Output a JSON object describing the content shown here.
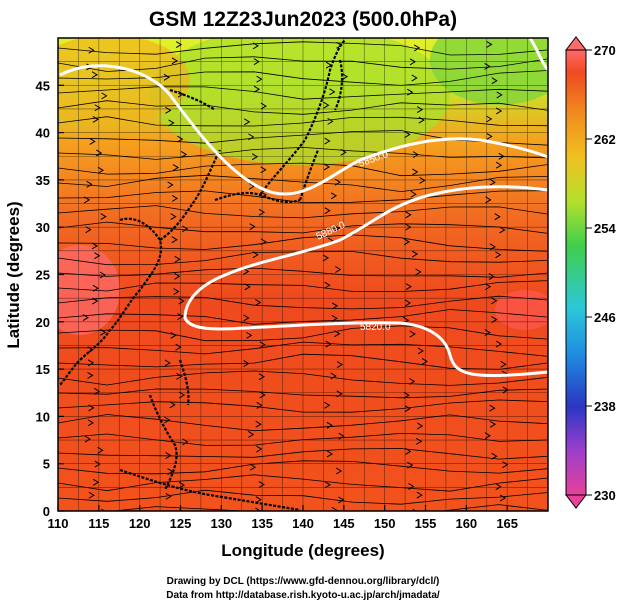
{
  "title": "GSM 12Z23Jun2023 (500.0hPa)",
  "x_axis": {
    "label": "Longitude (degrees)",
    "ticks": [
      "110",
      "115",
      "120",
      "125",
      "130",
      "135",
      "140",
      "145",
      "150",
      "155",
      "160",
      "165"
    ],
    "range": [
      110,
      170
    ]
  },
  "y_axis": {
    "label": "Latitude  (degrees)",
    "ticks": [
      "0",
      "5",
      "10",
      "15",
      "20",
      "25",
      "30",
      "35",
      "40",
      "45"
    ],
    "range": [
      0,
      50
    ]
  },
  "colorbar": {
    "ticks": [
      "270",
      "262",
      "254",
      "246",
      "238",
      "230"
    ],
    "range": [
      230,
      270
    ],
    "colors": [
      "#e8419a",
      "#9b3fcb",
      "#2a37c2",
      "#1f8fe0",
      "#2cc7d9",
      "#3fcf4c",
      "#b4e02c",
      "#f2c020",
      "#f08a1e",
      "#ef4a22",
      "#ff6a6a"
    ]
  },
  "contours": {
    "labels": [
      "5850.0",
      "5880.0",
      "5820.0"
    ],
    "color": "#ffffff"
  },
  "credits": {
    "line1": "Drawing by DCL (https://www.gfd-dennou.org/library/dcl/)",
    "line2": "Data from http://database.rish.kyoto-u.ac.jp/arch/jmadata/"
  }
}
